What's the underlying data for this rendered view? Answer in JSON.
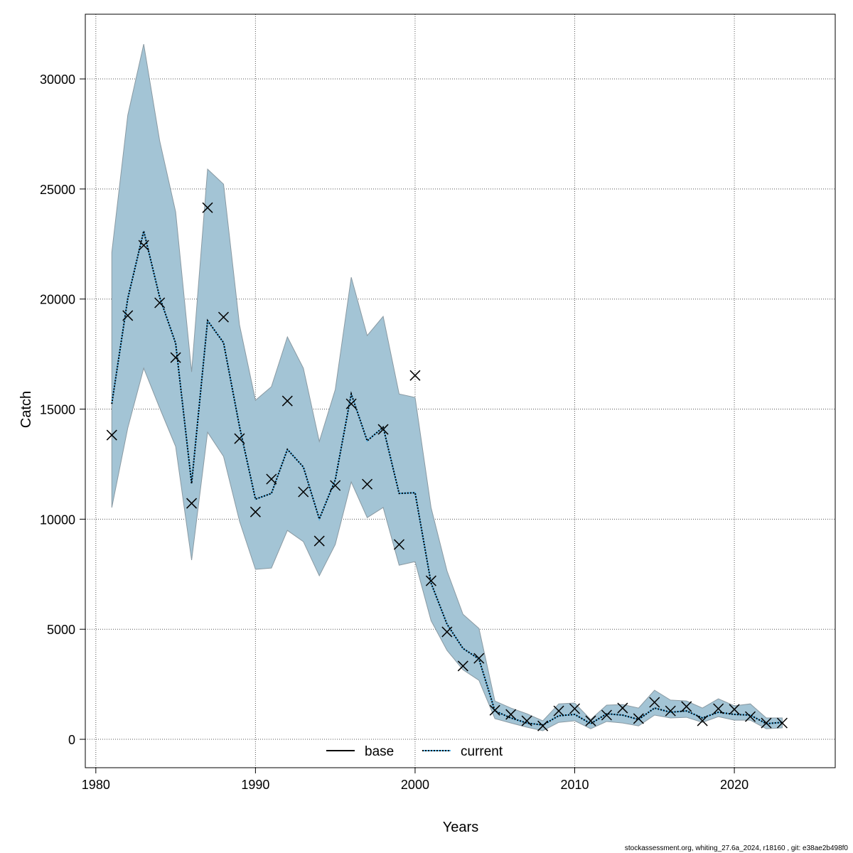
{
  "chart_data": {
    "type": "line",
    "title": "",
    "xlabel": "Years",
    "ylabel": "Catch",
    "xlim": [
      1979.34,
      2026.32
    ],
    "ylim": [
      -1290,
      32940
    ],
    "xticks": [
      1980,
      1990,
      2000,
      2010,
      2020
    ],
    "yticks": [
      0,
      5000,
      10000,
      15000,
      20000,
      25000,
      30000
    ],
    "grid": true,
    "legend_position": "bottom",
    "band_color": "#a3c4d5",
    "x": [
      1981,
      1982,
      1983,
      1984,
      1985,
      1986,
      1987,
      1988,
      1989,
      1990,
      1991,
      1992,
      1993,
      1994,
      1995,
      1996,
      1997,
      1998,
      1999,
      2000,
      2001,
      2002,
      2003,
      2004,
      2005,
      2006,
      2007,
      2008,
      2009,
      2010,
      2011,
      2012,
      2013,
      2014,
      2015,
      2016,
      2017,
      2018,
      2019,
      2020,
      2021,
      2022,
      2023
    ],
    "series": [
      {
        "name": "base",
        "style": "solid",
        "color": "#000000",
        "values": [
          15240,
          20020,
          23090,
          20080,
          17990,
          11620,
          19020,
          18020,
          14210,
          10910,
          11170,
          13170,
          12370,
          10010,
          11790,
          15690,
          13560,
          14180,
          11170,
          11200,
          7100,
          5230,
          4130,
          3650,
          1290,
          970,
          740,
          650,
          1070,
          1130,
          710,
          1160,
          1100,
          900,
          1420,
          1230,
          1290,
          970,
          1230,
          1130,
          1100,
          710,
          770
        ]
      },
      {
        "name": "current",
        "style": "dotted",
        "color": "#000000",
        "values": [
          15240,
          20020,
          23090,
          20080,
          17990,
          11620,
          19020,
          18020,
          14210,
          10910,
          11170,
          13170,
          12370,
          10010,
          11790,
          15690,
          13560,
          14180,
          11170,
          11200,
          7100,
          5230,
          4130,
          3650,
          1290,
          970,
          740,
          650,
          1070,
          1130,
          710,
          1160,
          1100,
          900,
          1420,
          1230,
          1290,
          970,
          1230,
          1130,
          1100,
          710,
          770
        ]
      }
    ],
    "band_upper": [
      22120,
      28350,
      31580,
      27190,
      23960,
      16690,
      25900,
      25220,
      18830,
      15400,
      16020,
      18280,
      16860,
      13530,
      15890,
      20990,
      18340,
      19210,
      15690,
      15530,
      10530,
      7650,
      5680,
      5040,
      1740,
      1420,
      1160,
      840,
      1610,
      1650,
      900,
      1550,
      1580,
      1420,
      2230,
      1780,
      1740,
      1420,
      1840,
      1520,
      1610,
      970,
      970
    ],
    "band_lower": [
      10530,
      14140,
      16860,
      15050,
      13300,
      8140,
      13950,
      12850,
      9910,
      7720,
      7780,
      9490,
      8980,
      7430,
      8850,
      11690,
      10070,
      10530,
      7910,
      8070,
      5390,
      4040,
      3160,
      2680,
      940,
      740,
      550,
      390,
      770,
      840,
      480,
      810,
      740,
      610,
      1100,
      970,
      1000,
      770,
      1030,
      870,
      870,
      480,
      520
    ],
    "observed": [
      13820,
      19250,
      22440,
      19830,
      17340,
      10720,
      24150,
      19180,
      13660,
      10330,
      11820,
      15370,
      11240,
      9010,
      11530,
      15240,
      11590,
      14080,
      8850,
      16530,
      7200,
      4880,
      3330,
      3680,
      1320,
      1130,
      840,
      610,
      1290,
      1390,
      840,
      1100,
      1420,
      940,
      1680,
      1290,
      1490,
      840,
      1390,
      1360,
      1030,
      740,
      740
    ]
  },
  "footer": "stockassessment.org, whiting_27.6a_2024, r18160 , git: e38ae2b498f0"
}
